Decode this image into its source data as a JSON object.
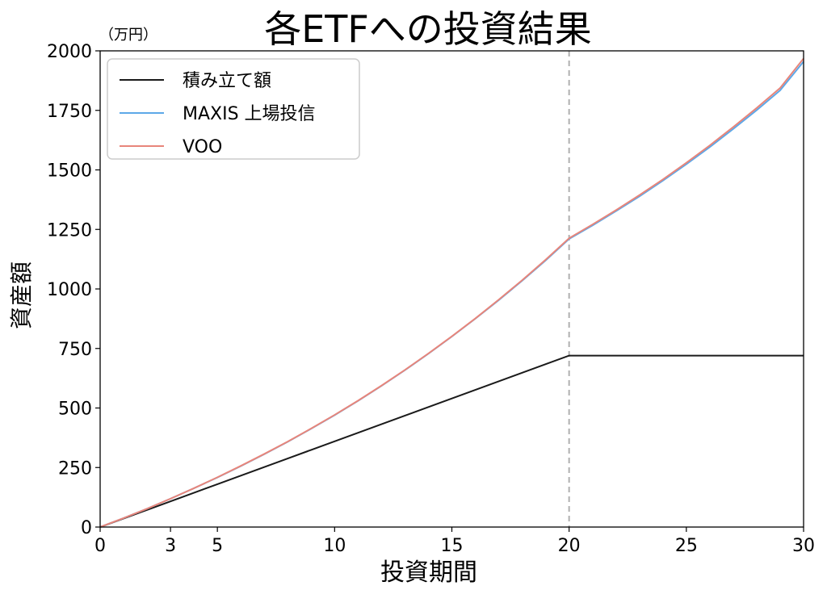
{
  "chart_data": {
    "type": "line",
    "title": "各ETFへの投資結果",
    "xlabel": "投資期間",
    "ylabel": "資産額",
    "unit_label": "（万円）",
    "xlim": [
      0,
      30
    ],
    "ylim": [
      0,
      2000
    ],
    "xticks": [
      0,
      3,
      5,
      10,
      15,
      20,
      25,
      30
    ],
    "yticks": [
      0,
      250,
      500,
      750,
      1000,
      1250,
      1500,
      1750,
      2000
    ],
    "grid": false,
    "legend_position": "top-left",
    "reference_line": {
      "x": 20,
      "style": "dashed"
    },
    "x": [
      0,
      1,
      2,
      3,
      4,
      5,
      6,
      7,
      8,
      9,
      10,
      11,
      12,
      13,
      14,
      15,
      16,
      17,
      18,
      19,
      20,
      21,
      22,
      23,
      24,
      25,
      26,
      27,
      28,
      29,
      30
    ],
    "series": [
      {
        "name": "積み立て額",
        "color": "#1a1a1a",
        "values": [
          0,
          36,
          72,
          108,
          144,
          180,
          216,
          252,
          288,
          324,
          360,
          396,
          432,
          468,
          504,
          540,
          576,
          612,
          648,
          684,
          720,
          720,
          720,
          720,
          720,
          720,
          720,
          720,
          720,
          720,
          720
        ]
      },
      {
        "name": "MAXIS 上場投信",
        "color": "#5da8e8",
        "values": [
          0,
          37.5,
          77,
          119,
          163,
          208,
          256,
          306,
          358,
          413,
          470,
          530,
          593,
          659,
          728,
          800,
          875,
          953,
          1035,
          1120,
          1210,
          1267,
          1327,
          1389,
          1455,
          1524,
          1596,
          1672,
          1751,
          1834,
          1955
        ]
      },
      {
        "name": "VOO",
        "color": "#e8857a",
        "values": [
          0,
          37.6,
          77,
          119,
          163,
          209,
          257,
          307,
          359,
          414,
          471,
          531,
          594,
          660,
          729,
          801,
          876,
          955,
          1037,
          1123,
          1213,
          1271,
          1331,
          1394,
          1460,
          1530,
          1603,
          1680,
          1760,
          1844,
          1968
        ]
      }
    ]
  }
}
